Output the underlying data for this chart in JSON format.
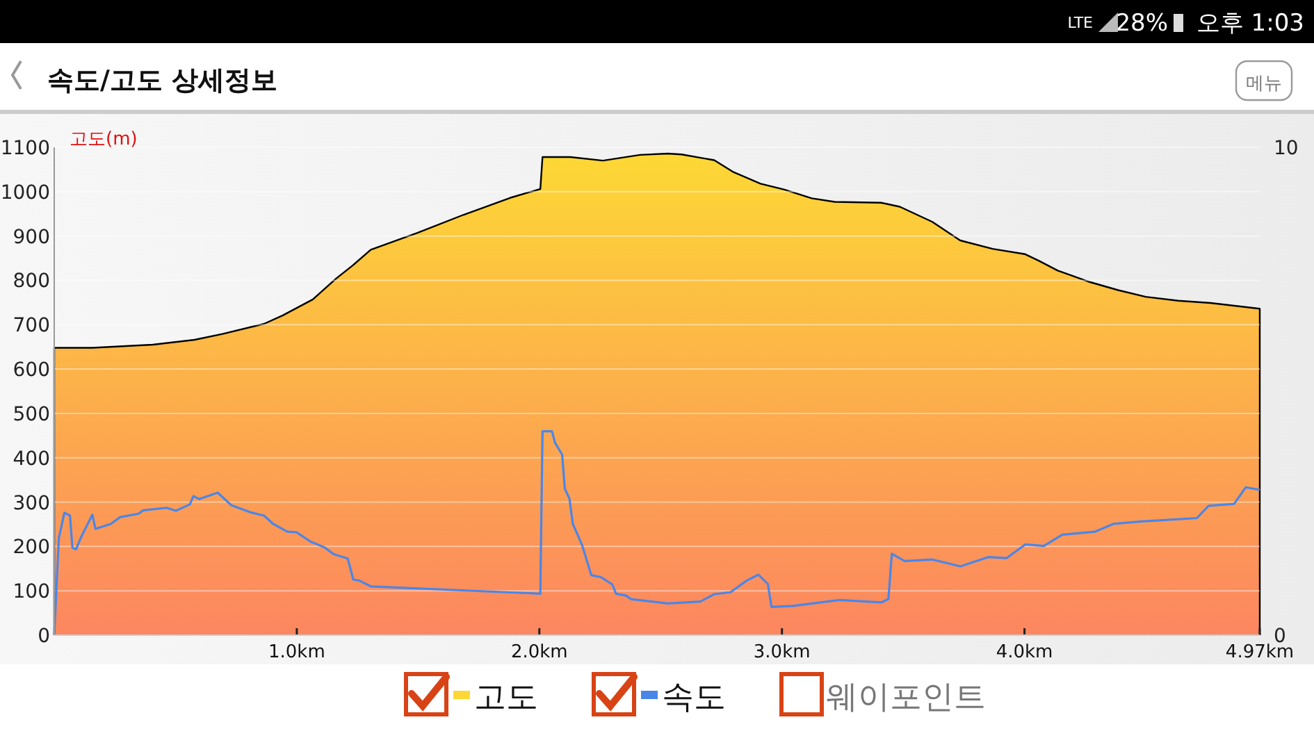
{
  "chart_data": {
    "type": "area",
    "title": "속도/고도 상세정보",
    "ylabel": "고도(m)",
    "annotations": [
      "메뉴",
      "LTE",
      "28%",
      "오후 1:03",
      "웨이포인트"
    ],
    "xlim": [
      0,
      4.97
    ],
    "xticks": [
      {
        "value": 1,
        "label": "1.0km"
      },
      {
        "value": 2,
        "label": "2.0km"
      },
      {
        "value": 3,
        "label": "3.0km"
      },
      {
        "value": 4,
        "label": "4.0km"
      },
      {
        "value": 4.97,
        "label": "4.97km"
      }
    ],
    "ylim": [
      0,
      1100
    ],
    "yticks": [
      0,
      100,
      200,
      300,
      400,
      500,
      600,
      700,
      800,
      900,
      1000,
      1100
    ],
    "y2lim": [
      0,
      10
    ],
    "y2ticks": [
      0,
      10
    ],
    "grid": "y",
    "legend": "bottom",
    "series": [
      {
        "name": "고도",
        "type": "area",
        "color": "#fdd835",
        "x": [
          0,
          0.157,
          0.406,
          0.578,
          0.693,
          0.865,
          0.942,
          1.066,
          1.162,
          1.229,
          1.305,
          1.497,
          1.688,
          1.879,
          2.004,
          2.013,
          2.128,
          2.262,
          2.415,
          2.53,
          2.587,
          2.721,
          2.797,
          2.912,
          3.008,
          3.123,
          3.218,
          3.41,
          3.486,
          3.62,
          3.735,
          3.869,
          4.003,
          4.06,
          4.137,
          4.271,
          4.386,
          4.5,
          4.634,
          4.768,
          4.97
        ],
        "values": [
          648,
          648,
          655,
          666,
          679,
          702,
          721,
          757,
          804,
          833,
          869,
          907,
          948,
          986,
          1006,
          1078,
          1078,
          1070,
          1083,
          1086,
          1084,
          1071,
          1045,
          1018,
          1005,
          985,
          977,
          975,
          966,
          932,
          890,
          871,
          859,
          844,
          822,
          796,
          778,
          763,
          754,
          749,
          736
        ]
      },
      {
        "name": "속도",
        "type": "line",
        "axis": "y2",
        "color": "#4a86e8",
        "x": [
          0,
          0.019,
          0.042,
          0.065,
          0.075,
          0.09,
          0.109,
          0.157,
          0.17,
          0.233,
          0.272,
          0.348,
          0.367,
          0.463,
          0.501,
          0.559,
          0.574,
          0.597,
          0.674,
          0.731,
          0.808,
          0.865,
          0.903,
          0.961,
          0.999,
          1.056,
          1.114,
          1.152,
          1.21,
          1.233,
          1.257,
          1.305,
          2.004,
          2.013,
          2.052,
          2.065,
          2.094,
          2.105,
          2.124,
          2.138,
          2.176,
          2.214,
          2.253,
          2.301,
          2.316,
          2.358,
          2.377,
          2.53,
          2.664,
          2.721,
          2.788,
          2.855,
          2.903,
          2.942,
          2.957,
          3.047,
          3.238,
          3.41,
          3.439,
          3.453,
          3.506,
          3.621,
          3.736,
          3.85,
          3.927,
          4.003,
          4.08,
          4.156,
          4.29,
          4.366,
          4.481,
          4.577,
          4.711,
          4.759,
          4.864,
          4.912,
          4.97
        ],
        "values": [
          0,
          1.99,
          2.51,
          2.45,
          1.79,
          1.76,
          1.99,
          2.47,
          2.18,
          2.28,
          2.42,
          2.49,
          2.56,
          2.61,
          2.55,
          2.68,
          2.85,
          2.79,
          2.92,
          2.66,
          2.52,
          2.45,
          2.28,
          2.12,
          2.11,
          1.92,
          1.8,
          1.66,
          1.57,
          1.14,
          1.12,
          1.0,
          0.85,
          4.18,
          4.18,
          3.94,
          3.7,
          3.0,
          2.8,
          2.28,
          1.85,
          1.23,
          1.19,
          1.04,
          0.85,
          0.81,
          0.74,
          0.65,
          0.69,
          0.84,
          0.88,
          1.12,
          1.24,
          1.05,
          0.58,
          0.6,
          0.72,
          0.67,
          0.74,
          1.67,
          1.52,
          1.55,
          1.41,
          1.6,
          1.58,
          1.86,
          1.83,
          2.06,
          2.12,
          2.28,
          2.33,
          2.36,
          2.4,
          2.65,
          2.69,
          3.03,
          2.98
        ]
      }
    ]
  }
}
